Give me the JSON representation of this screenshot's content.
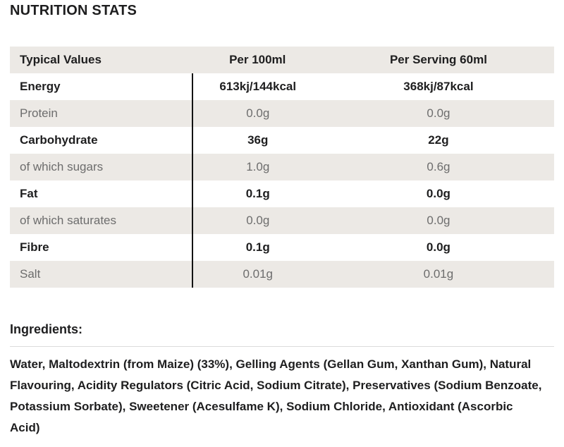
{
  "page": {
    "title": "NUTRITION STATS"
  },
  "table": {
    "headers": [
      "Typical Values",
      "Per 100ml",
      "Per Serving 60ml"
    ],
    "rows": [
      {
        "label": "Energy",
        "per_100ml": "613kj/144kcal",
        "per_serving": "368kj/87kcal"
      },
      {
        "label": "Protein",
        "per_100ml": "0.0g",
        "per_serving": "0.0g"
      },
      {
        "label": "Carbohydrate",
        "per_100ml": "36g",
        "per_serving": "22g"
      },
      {
        "label": "of which sugars",
        "per_100ml": "1.0g",
        "per_serving": "0.6g"
      },
      {
        "label": "Fat",
        "per_100ml": "0.1g",
        "per_serving": "0.0g"
      },
      {
        "label": "of which saturates",
        "per_100ml": "0.0g",
        "per_serving": "0.0g"
      },
      {
        "label": "Fibre",
        "per_100ml": "0.1g",
        "per_serving": "0.0g"
      },
      {
        "label": "Salt",
        "per_100ml": "0.01g",
        "per_serving": "0.01g"
      }
    ]
  },
  "ingredients": {
    "heading": "Ingredients:",
    "text": "Water, Maltodextrin (from Maize) (33%), Gelling Agents (Gellan Gum, Xanthan Gum), Natural Flavouring, Acidity Regulators (Citric Acid, Sodium Citrate), Preservatives (Sodium Benzoate, Potassium Sorbate), Sweetener (Acesulfame K), Sodium Chloride, Antioxidant (Ascorbic Acid)"
  },
  "colors": {
    "text_dark": "#1e1e1f",
    "text_muted": "#6d6d6d",
    "row_grey": "#ece9e5",
    "divider_line": "#131313",
    "rule_line": "#dcdcdc"
  }
}
